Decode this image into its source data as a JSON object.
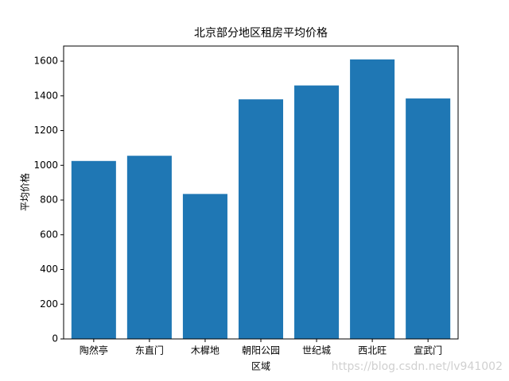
{
  "chart_data": {
    "type": "bar",
    "title": "北京部分地区租房平均价格",
    "x_label": "区域",
    "y_label": "平均价格",
    "categories": [
      "陶然亭",
      "东直门",
      "木樨地",
      "朝阳公园",
      "世纪城",
      "西北旺",
      "宣武门"
    ],
    "values": [
      1025,
      1055,
      835,
      1380,
      1460,
      1610,
      1385
    ],
    "color": "#1f77b4",
    "ylim": [
      0,
      1687
    ],
    "yticks": [
      0,
      200,
      400,
      600,
      800,
      1000,
      1200,
      1400,
      1600
    ],
    "grid": false
  },
  "watermark": "https://blog.csdn.net/lv941002"
}
